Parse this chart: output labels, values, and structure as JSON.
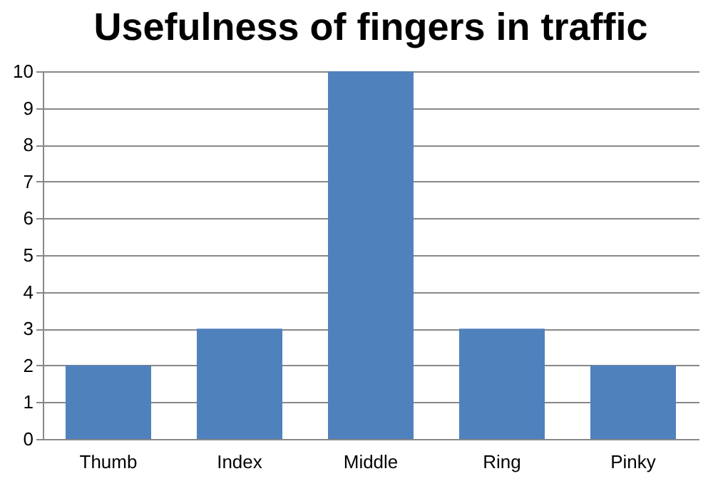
{
  "chart_data": {
    "type": "bar",
    "title": "Usefulness of fingers in traffic",
    "categories": [
      "Thumb",
      "Index",
      "Middle",
      "Ring",
      "Pinky"
    ],
    "values": [
      2,
      3,
      10,
      3,
      2
    ],
    "color": "#4f81bd",
    "ylim": [
      0,
      10
    ],
    "yticks": [
      0,
      1,
      2,
      3,
      4,
      5,
      6,
      7,
      8,
      9,
      10
    ],
    "grid": "y"
  }
}
